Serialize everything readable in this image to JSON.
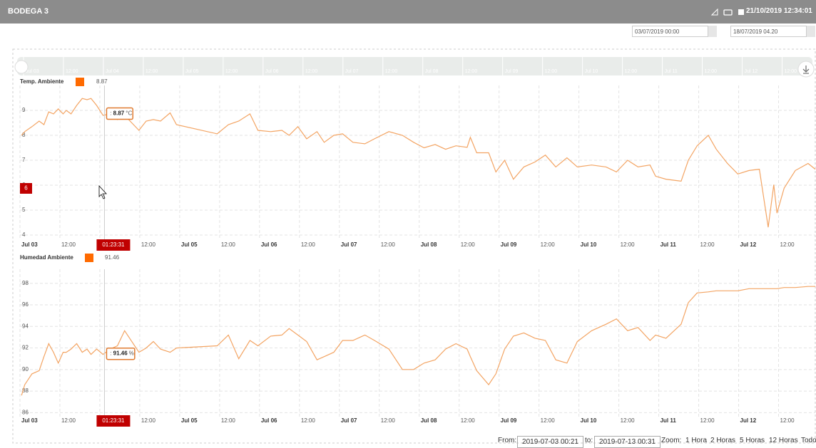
{
  "header": {
    "title": "BODEGA 3",
    "datetime": "21/10/2019 12:34:01"
  },
  "date_range": {
    "start": "03/07/2019 00:00",
    "end": "18/07/2019 04.20"
  },
  "chart_data": [
    {
      "type": "line",
      "legend_color": "#ff6a00",
      "legend_value": 8.87,
      "x": [
        0.02,
        0.06,
        0.15,
        0.24,
        0.3,
        0.36,
        0.42,
        0.48,
        0.54,
        0.58,
        0.64,
        0.71,
        0.78,
        0.84,
        0.89,
        0.96,
        1.04,
        1.13,
        1.22,
        1.31,
        1.49,
        1.58,
        1.67,
        1.76,
        1.88,
        1.96,
        2.47,
        2.61,
        2.74,
        2.88,
        2.98,
        3.14,
        3.28,
        3.37,
        3.48,
        3.59,
        3.72,
        3.81,
        3.93,
        4.04,
        4.17,
        4.32,
        4.44,
        4.62,
        4.79,
        4.93,
        5.06,
        5.2,
        5.33,
        5.46,
        5.6,
        5.64,
        5.72,
        5.87,
        5.96,
        6.07,
        6.18,
        6.31,
        6.45,
        6.58,
        6.71,
        6.85,
        6.98,
        7.16,
        7.34,
        7.47,
        7.61,
        7.74,
        7.89,
        7.96,
        8.09,
        8.28,
        8.37,
        8.48,
        8.62,
        8.72,
        8.86,
        8.99,
        9.13,
        9.26,
        9.37,
        9.44,
        9.48,
        9.57,
        9.71,
        9.87,
        9.96
      ],
      "series": [
        {
          "name": "Temp. Ambiente",
          "color": "#f3a463",
          "values": [
            8.0,
            8.15,
            8.35,
            8.57,
            8.43,
            8.94,
            8.86,
            9.06,
            8.86,
            9.0,
            8.86,
            9.2,
            9.48,
            9.43,
            9.48,
            9.2,
            8.8,
            8.86,
            8.63,
            8.8,
            8.2,
            8.57,
            8.63,
            8.57,
            8.9,
            8.43,
            8.06,
            8.43,
            8.57,
            8.86,
            8.2,
            8.15,
            8.2,
            8.0,
            8.35,
            7.86,
            8.15,
            7.72,
            8.0,
            8.06,
            7.72,
            7.66,
            7.86,
            8.15,
            8.0,
            7.72,
            7.5,
            7.63,
            7.44,
            7.58,
            7.52,
            7.92,
            7.3,
            7.3,
            6.53,
            7.0,
            6.24,
            6.73,
            6.93,
            7.21,
            6.73,
            7.1,
            6.73,
            6.81,
            6.73,
            6.53,
            7.0,
            6.73,
            6.81,
            6.36,
            6.24,
            6.16,
            7.0,
            7.58,
            8.0,
            7.44,
            6.87,
            6.45,
            6.59,
            6.64,
            4.31,
            6.02,
            4.88,
            5.88,
            6.59,
            6.87,
            6.64
          ]
        }
      ],
      "xlim": [
        0,
        9.96
      ],
      "xticks": [
        {
          "value": 0,
          "label": "Jul 03"
        },
        {
          "value": 0.5,
          "label": "12:00"
        },
        {
          "value": 1,
          "label": "Jul 04"
        },
        {
          "value": 1.5,
          "label": "12:00"
        },
        {
          "value": 2,
          "label": "Jul 05"
        },
        {
          "value": 2.5,
          "label": "12:00"
        },
        {
          "value": 3,
          "label": "Jul 06"
        },
        {
          "value": 3.5,
          "label": "12:00"
        },
        {
          "value": 4,
          "label": "Jul 07"
        },
        {
          "value": 4.5,
          "label": "12:00"
        },
        {
          "value": 5,
          "label": "Jul 08"
        },
        {
          "value": 5.5,
          "label": "12:00"
        },
        {
          "value": 6,
          "label": "Jul 09"
        },
        {
          "value": 6.5,
          "label": "12:00"
        },
        {
          "value": 7,
          "label": "Jul 10"
        },
        {
          "value": 7.5,
          "label": "12:00"
        },
        {
          "value": 8,
          "label": "Jul 11"
        },
        {
          "value": 8.5,
          "label": "12:00"
        },
        {
          "value": 9,
          "label": "Jul 12"
        },
        {
          "value": 9.5,
          "label": "12:00"
        }
      ],
      "ylim": [
        3.8,
        10
      ],
      "yticks": [
        4,
        5,
        6,
        7,
        8,
        9
      ],
      "grid": true,
      "crosshair": {
        "value": 1.058,
        "label": "01:23:31"
      },
      "crosshair_y": 6,
      "tooltip": {
        "prefix": ":",
        "value": 8.87,
        "unit": "°C"
      }
    },
    {
      "type": "line",
      "legend_color": "#ff6a00",
      "legend_value": 91.46,
      "x": [
        0.02,
        0.06,
        0.15,
        0.24,
        0.3,
        0.36,
        0.42,
        0.48,
        0.54,
        0.58,
        0.64,
        0.71,
        0.78,
        0.84,
        0.89,
        0.96,
        1.04,
        1.13,
        1.22,
        1.31,
        1.49,
        1.58,
        1.67,
        1.76,
        1.88,
        1.96,
        2.47,
        2.61,
        2.74,
        2.88,
        2.98,
        3.14,
        3.28,
        3.37,
        3.48,
        3.59,
        3.72,
        3.81,
        3.93,
        4.04,
        4.17,
        4.32,
        4.44,
        4.62,
        4.79,
        4.93,
        5.06,
        5.2,
        5.33,
        5.46,
        5.6,
        5.64,
        5.72,
        5.87,
        5.96,
        6.07,
        6.18,
        6.31,
        6.45,
        6.58,
        6.71,
        6.85,
        6.98,
        7.16,
        7.34,
        7.47,
        7.61,
        7.74,
        7.89,
        7.96,
        8.09,
        8.28,
        8.37,
        8.48,
        8.62,
        8.72,
        8.86,
        8.99,
        9.13,
        9.26,
        9.37,
        9.44,
        9.48,
        9.57,
        9.71,
        9.87,
        9.96
      ],
      "series": [
        {
          "name": "Humedad Ambiente",
          "color": "#f3a463",
          "values": [
            87.6,
            88.6,
            89.6,
            89.9,
            91.2,
            92.4,
            91.6,
            90.6,
            91.6,
            91.6,
            91.9,
            92.4,
            91.6,
            91.9,
            91.4,
            91.9,
            91.4,
            91.9,
            92.2,
            93.6,
            91.6,
            92.0,
            92.6,
            91.9,
            91.6,
            92.0,
            92.2,
            93.2,
            91.0,
            92.7,
            92.2,
            93.1,
            93.2,
            93.8,
            93.2,
            92.6,
            90.9,
            91.2,
            91.6,
            92.7,
            92.7,
            93.2,
            92.7,
            91.9,
            90.0,
            90.0,
            90.6,
            90.9,
            91.9,
            92.4,
            91.9,
            91.2,
            89.9,
            88.6,
            89.6,
            91.9,
            93.1,
            93.4,
            92.9,
            92.7,
            90.9,
            90.6,
            92.6,
            93.6,
            94.2,
            94.7,
            93.6,
            93.9,
            92.7,
            93.2,
            92.9,
            94.2,
            96.2,
            97.1,
            97.2,
            97.3,
            97.3,
            97.3,
            97.5,
            97.5,
            97.5,
            97.5,
            97.5,
            97.6,
            97.6,
            97.7,
            97.7
          ]
        }
      ],
      "xlim": [
        0,
        9.96
      ],
      "xticks": [
        {
          "value": 0,
          "label": "Jul 03"
        },
        {
          "value": 0.5,
          "label": "12:00"
        },
        {
          "value": 1,
          "label": "Jul 04"
        },
        {
          "value": 1.5,
          "label": "12:00"
        },
        {
          "value": 2,
          "label": "Jul 05"
        },
        {
          "value": 2.5,
          "label": "12:00"
        },
        {
          "value": 3,
          "label": "Jul 06"
        },
        {
          "value": 3.5,
          "label": "12:00"
        },
        {
          "value": 4,
          "label": "Jul 07"
        },
        {
          "value": 4.5,
          "label": "12:00"
        },
        {
          "value": 5,
          "label": "Jul 08"
        },
        {
          "value": 5.5,
          "label": "12:00"
        },
        {
          "value": 6,
          "label": "Jul 09"
        },
        {
          "value": 6.5,
          "label": "12:00"
        },
        {
          "value": 7,
          "label": "Jul 10"
        },
        {
          "value": 7.5,
          "label": "12:00"
        },
        {
          "value": 8,
          "label": "Jul 11"
        },
        {
          "value": 8.5,
          "label": "12:00"
        },
        {
          "value": 9,
          "label": "Jul 12"
        },
        {
          "value": 9.5,
          "label": "12:00"
        }
      ],
      "ylim": [
        85.5,
        99.3
      ],
      "yticks": [
        86,
        88,
        90,
        92,
        94,
        96,
        98
      ],
      "grid": true,
      "crosshair": {
        "value": 1.058,
        "label": "01:23:31"
      },
      "tooltip": {
        "prefix": ":",
        "value": 91.46,
        "unit": "%"
      }
    }
  ],
  "range_selector": {
    "from_label": "From:",
    "from": "2019-07-03 00:21",
    "to_label": "to:",
    "to": "2019-07-13 00:31",
    "zoom_label": "Zoom:",
    "buttons": [
      "1 Hora",
      "2 Horas",
      "5 Horas",
      "12 Horas",
      "Todo"
    ]
  }
}
